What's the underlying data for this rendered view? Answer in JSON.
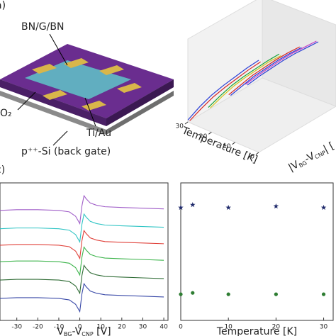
{
  "panel_labels": [
    "a)",
    "c)"
  ],
  "diagram": {
    "labels": [
      "BN/G/BN",
      "O₂",
      "Ti/Au",
      "p⁺⁺-Si (back gate)"
    ]
  },
  "chart_data": [
    {
      "type": "line3d",
      "x_label": "Temperature [K]",
      "y_label": [
        "|V",
        "BG",
        "-V",
        "CNP",
        "| ["
      ],
      "xlim": [
        0,
        30
      ],
      "xticks": [
        0,
        10,
        20,
        30
      ],
      "ylim": [
        0,
        40
      ],
      "zlim": [
        0,
        1
      ],
      "x": [
        30,
        25,
        20,
        15,
        10,
        5,
        0
      ],
      "series": [
        {
          "color": "#2b3fd6",
          "y": 0,
          "values": [
            0.02,
            0.22,
            0.4,
            0.56,
            0.71,
            0.86,
            1.0
          ]
        },
        {
          "color": "#d62728",
          "y": 1,
          "values": [
            0.0,
            0.19,
            0.37,
            0.53,
            0.68,
            0.83,
            0.97
          ]
        },
        {
          "color": "#1aa33a",
          "y": 11,
          "values": [
            0.02,
            0.2,
            0.37,
            0.52,
            0.66,
            0.8,
            0.93
          ]
        },
        {
          "color": "#d6c21a",
          "y": 12,
          "values": [
            0.0,
            0.18,
            0.35,
            0.5,
            0.64,
            0.78,
            0.9
          ]
        },
        {
          "color": "#d62728",
          "y": 22,
          "values": [
            0.02,
            0.18,
            0.34,
            0.48,
            0.62,
            0.75,
            0.87
          ]
        },
        {
          "color": "#2b3fd6",
          "y": 23,
          "values": [
            0.0,
            0.16,
            0.32,
            0.46,
            0.6,
            0.73,
            0.85
          ]
        },
        {
          "color": "#c43fc4",
          "y": 31,
          "values": [
            0.02,
            0.17,
            0.31,
            0.45,
            0.58,
            0.7,
            0.82
          ]
        },
        {
          "color": "#2b3fd6",
          "y": 32,
          "values": [
            0.0,
            0.15,
            0.29,
            0.43,
            0.56,
            0.68,
            0.8
          ]
        }
      ]
    },
    {
      "type": "line",
      "x_label": [
        "V",
        "BG",
        "-V",
        "CNP",
        " [V]"
      ],
      "xlim": [
        -38,
        42
      ],
      "xticks": [
        -30,
        -20,
        -10,
        0,
        10,
        20,
        30,
        40
      ],
      "ylim": [
        0,
        7.5
      ],
      "x": [
        -38,
        -30,
        -20,
        -10,
        -5,
        -2,
        0,
        1,
        2,
        3,
        5,
        8,
        12,
        20,
        30,
        40
      ],
      "series": [
        {
          "color": "#a05ec8",
          "values": [
            6,
            6.04,
            6.04,
            6,
            5.92,
            5.68,
            5.28,
            6.24,
            6.8,
            6.64,
            6.4,
            6.28,
            6.2,
            6.16,
            6.12,
            6.08
          ]
        },
        {
          "color": "#2ec4c4",
          "values": [
            5,
            5.04,
            5.04,
            5,
            4.92,
            4.68,
            4.28,
            5.24,
            5.8,
            5.64,
            5.4,
            5.28,
            5.2,
            5.16,
            5.12,
            5.08
          ]
        },
        {
          "color": "#e0413a",
          "values": [
            4.1,
            4.14,
            4.14,
            4.1,
            4.02,
            3.78,
            3.38,
            4.34,
            4.9,
            4.74,
            4.5,
            4.38,
            4.3,
            4.26,
            4.22,
            4.18
          ]
        },
        {
          "color": "#3cb44b",
          "values": [
            3.2,
            3.24,
            3.24,
            3.2,
            3.12,
            2.88,
            2.48,
            3.44,
            4,
            3.84,
            3.6,
            3.48,
            3.4,
            3.36,
            3.32,
            3.28
          ]
        },
        {
          "color": "#2e6b34",
          "values": [
            2.2,
            2.24,
            2.24,
            2.2,
            2.12,
            1.88,
            1.48,
            2.44,
            3,
            2.84,
            2.6,
            2.48,
            2.4,
            2.36,
            2.32,
            2.28
          ]
        },
        {
          "color": "#3a4aa8",
          "values": [
            1.2,
            1.24,
            1.24,
            1.2,
            1.12,
            0.88,
            0.48,
            1.44,
            2,
            1.84,
            1.6,
            1.48,
            1.4,
            1.36,
            1.32,
            1.28
          ]
        }
      ]
    },
    {
      "type": "scatter",
      "x_label": "Temperature [K]",
      "xlim": [
        0,
        32
      ],
      "xticks": [
        0,
        10,
        20,
        30
      ],
      "ylim": [
        0,
        1
      ],
      "series": [
        {
          "color": "#1f2a6b",
          "marker": "star",
          "x": [
            0,
            2.5,
            10,
            20,
            30
          ],
          "values": [
            0.82,
            0.84,
            0.82,
            0.83,
            0.82
          ]
        },
        {
          "color": "#2e7d32",
          "marker": "circle",
          "x": [
            0,
            2.5,
            10,
            20,
            30
          ],
          "values": [
            0.19,
            0.2,
            0.19,
            0.19,
            0.19
          ]
        }
      ]
    }
  ]
}
